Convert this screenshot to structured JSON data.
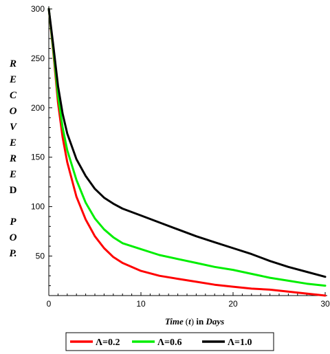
{
  "chart_data": {
    "type": "line",
    "title": "",
    "ylabel_lines": [
      "R",
      "E",
      "C",
      "O",
      "V",
      "E",
      "R",
      "E",
      "D",
      "",
      "P",
      "O",
      "P."
    ],
    "xlabel": {
      "part1": "Time",
      "part2": "(",
      "part3": "t",
      "part4": ")",
      "part5": " in ",
      "part6": "Days"
    },
    "xlim": [
      0,
      30
    ],
    "ylim": [
      10,
      300
    ],
    "x_ticks": [
      0,
      10,
      20,
      30
    ],
    "y_ticks": [
      50,
      100,
      150,
      200,
      250,
      300
    ],
    "legend_position": "bottom",
    "series": [
      {
        "name": "Λ=0.2",
        "color": "#ff0000",
        "points": [
          [
            0,
            300
          ],
          [
            0.5,
            255
          ],
          [
            1,
            205
          ],
          [
            1.5,
            170
          ],
          [
            2,
            145
          ],
          [
            3,
            110
          ],
          [
            4,
            87
          ],
          [
            5,
            70
          ],
          [
            6,
            58
          ],
          [
            7,
            49
          ],
          [
            8,
            43
          ],
          [
            10,
            35
          ],
          [
            12,
            30
          ],
          [
            14,
            27
          ],
          [
            16,
            24
          ],
          [
            18,
            21
          ],
          [
            20,
            19
          ],
          [
            22,
            17
          ],
          [
            24,
            16
          ],
          [
            26,
            14
          ],
          [
            28,
            12
          ],
          [
            30,
            10
          ]
        ]
      },
      {
        "name": "Λ=0.6",
        "color": "#00ee00",
        "points": [
          [
            0,
            300
          ],
          [
            0.5,
            258
          ],
          [
            1,
            212
          ],
          [
            1.5,
            180
          ],
          [
            2,
            157
          ],
          [
            3,
            127
          ],
          [
            4,
            104
          ],
          [
            5,
            88
          ],
          [
            6,
            77
          ],
          [
            7,
            69
          ],
          [
            8,
            63
          ],
          [
            10,
            57
          ],
          [
            12,
            51
          ],
          [
            14,
            47
          ],
          [
            16,
            43
          ],
          [
            18,
            39
          ],
          [
            20,
            36
          ],
          [
            22,
            32
          ],
          [
            24,
            28
          ],
          [
            26,
            25
          ],
          [
            28,
            22
          ],
          [
            30,
            20
          ]
        ]
      },
      {
        "name": "Λ=1.0",
        "color": "#000000",
        "points": [
          [
            0,
            300
          ],
          [
            0.5,
            262
          ],
          [
            1,
            222
          ],
          [
            1.5,
            194
          ],
          [
            2,
            174
          ],
          [
            3,
            148
          ],
          [
            4,
            131
          ],
          [
            5,
            118
          ],
          [
            6,
            109
          ],
          [
            7,
            103
          ],
          [
            8,
            98
          ],
          [
            10,
            91
          ],
          [
            12,
            84
          ],
          [
            14,
            77
          ],
          [
            16,
            70
          ],
          [
            18,
            64
          ],
          [
            20,
            58
          ],
          [
            22,
            52
          ],
          [
            24,
            45
          ],
          [
            26,
            39
          ],
          [
            28,
            34
          ],
          [
            30,
            29
          ]
        ]
      }
    ]
  }
}
